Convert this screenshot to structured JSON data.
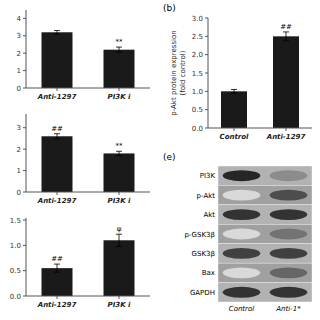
{
  "chart_data": [
    {
      "type": "bar",
      "categories": [
        "Anti-1297",
        "PI3K i"
      ],
      "values": [
        3.2,
        2.2
      ],
      "errors": [
        0.1,
        0.15
      ],
      "annotations": [
        null,
        "**"
      ],
      "color": "#1a1a1a",
      "ylim": [
        0,
        4.48
      ],
      "yticks": [
        0,
        1,
        2,
        3,
        4
      ]
    },
    {
      "type": "bar",
      "categories": [
        "Anti-1297",
        "PI3K i"
      ],
      "values": [
        2.6,
        1.8
      ],
      "errors": [
        0.12,
        0.1
      ],
      "annotations": [
        "##",
        "**"
      ],
      "color": "#1a1a1a",
      "ylim": [
        0,
        3.64
      ],
      "yticks": [
        0,
        1,
        2,
        3
      ]
    },
    {
      "type": "bar",
      "categories": [
        "Anti-1297",
        "PI3K i"
      ],
      "values": [
        0.55,
        1.1
      ],
      "errors": [
        0.08,
        0.12
      ],
      "annotations": [
        "##",
        "ψ"
      ],
      "color": "#1a1a1a",
      "ylim": [
        0,
        1.54
      ],
      "yticks": [
        {
          "value": 0,
          "label": "0.0"
        },
        {
          "value": 0.5,
          "label": "0.5"
        },
        {
          "value": 1.0,
          "label": "1.0"
        },
        {
          "value": 1.5,
          "label": "1.5"
        }
      ]
    },
    {
      "type": "bar",
      "title": "(b)",
      "ylabel": "p-Akt protein expression\n(fold control)",
      "categories": [
        "Control",
        "Anti-1297"
      ],
      "values": [
        1.0,
        2.5
      ],
      "errors": [
        0.05,
        0.12
      ],
      "annotations": [
        null,
        "##"
      ],
      "color": "#1a1a1a",
      "ylim": [
        0,
        3
      ],
      "yticks": [
        {
          "value": 0,
          "label": "0.0"
        },
        {
          "value": 0.5,
          "label": "0.5"
        },
        {
          "value": 1.0,
          "label": "1.0"
        },
        {
          "value": 1.5,
          "label": "1.5"
        },
        {
          "value": 2.0,
          "label": "2.0"
        },
        {
          "value": 2.5,
          "label": "2.5"
        },
        {
          "value": 3.0,
          "label": "3.0"
        }
      ]
    },
    {
      "type": "heatmap",
      "title": "(e)",
      "categories": [
        "Control",
        "Anti-1*"
      ],
      "row_labels": [
        "PI3K",
        "p-Akt",
        "Akt",
        "p-GSK3β",
        "GSK3β",
        "Bax",
        "GAPDH"
      ],
      "values": [
        [
          0.85,
          0.45
        ],
        [
          0.15,
          0.7
        ],
        [
          0.8,
          0.8
        ],
        [
          0.15,
          0.55
        ],
        [
          0.75,
          0.75
        ],
        [
          0.15,
          0.6
        ],
        [
          0.8,
          0.8
        ]
      ]
    }
  ]
}
